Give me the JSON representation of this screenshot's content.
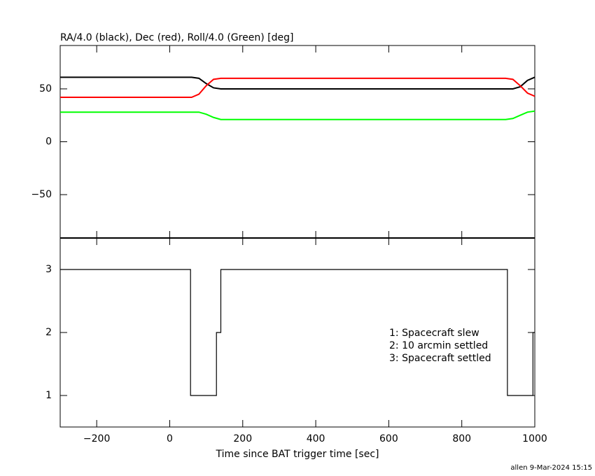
{
  "chart_data": [
    {
      "type": "line",
      "title": "RA/4.0 (black), Dec (red), Roll/4.0 (Green) [deg]",
      "x": [
        -300,
        60,
        80,
        100,
        120,
        140,
        920,
        940,
        960,
        980,
        1000
      ],
      "series": [
        {
          "color": "#000000",
          "values": [
            61,
            61,
            60,
            55,
            51,
            50,
            50,
            50,
            52,
            58,
            61
          ]
        },
        {
          "color": "#ff0000",
          "values": [
            42,
            42,
            45,
            53,
            59,
            60,
            60,
            59,
            53,
            46,
            43
          ]
        },
        {
          "color": "#00ff00",
          "values": [
            28,
            28,
            28,
            26,
            23,
            21,
            21,
            22,
            25,
            28,
            29
          ]
        }
      ],
      "xlim": [
        -300,
        1000
      ],
      "ylim": [
        -91,
        91
      ],
      "yticks": [
        {
          "value": -50,
          "label": "−50"
        },
        0,
        50
      ]
    },
    {
      "type": "step",
      "xlabel": "Time since BAT trigger time [sec]",
      "x": [
        -300,
        57,
        128,
        140,
        925,
        995
      ],
      "series": [
        {
          "color": "#000000",
          "values": [
            3,
            1,
            2,
            3,
            1,
            2
          ]
        }
      ],
      "xlim": [
        -300,
        1000
      ],
      "ylim": [
        0.5,
        3.5
      ],
      "xticks": [
        {
          "value": -200,
          "label": "−200"
        },
        0,
        200,
        400,
        600,
        800,
        1000
      ],
      "yticks": [
        1,
        2,
        3
      ],
      "annotations": [
        "1: Spacecraft slew",
        "2: 10 arcmin settled",
        "3: Spacecraft settled"
      ]
    }
  ],
  "footer": "allen  9-Mar-2024 15:15"
}
